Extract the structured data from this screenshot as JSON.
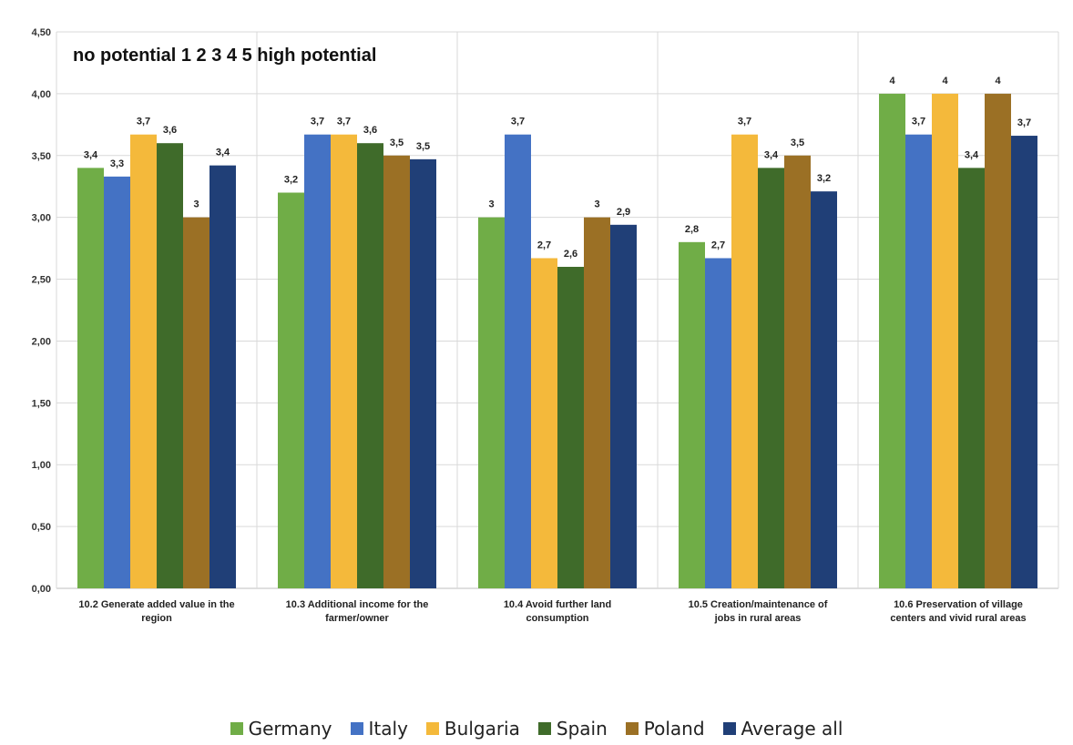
{
  "chart_data": {
    "type": "bar",
    "title": "no potential 1 2 3 4 5 high potential",
    "categories": [
      [
        "10.2 Generate added value in the",
        "region"
      ],
      [
        "10.3 Additional income for the",
        "farmer/owner"
      ],
      [
        "10.4 Avoid further land",
        "consumption"
      ],
      [
        "10.5 Creation/maintenance of",
        "jobs in rural areas"
      ],
      [
        "10.6 Preservation of village",
        "centers and vivid rural areas"
      ]
    ],
    "series": [
      {
        "name": "Germany",
        "color": "#70ad47",
        "values": [
          3.4,
          3.2,
          3.0,
          2.8,
          4.0
        ],
        "labels": [
          "3,4",
          "3,2",
          "3",
          "2,8",
          "4"
        ]
      },
      {
        "name": "Italy",
        "color": "#4472c4",
        "values": [
          3.33,
          3.67,
          3.67,
          2.67,
          3.67
        ],
        "labels": [
          "3,3",
          "3,7",
          "3,7",
          "2,7",
          "3,7"
        ]
      },
      {
        "name": "Bulgaria",
        "color": "#f4b93b",
        "values": [
          3.67,
          3.67,
          2.67,
          3.67,
          4.0
        ],
        "labels": [
          "3,7",
          "3,7",
          "2,7",
          "3,7",
          "4"
        ]
      },
      {
        "name": "Spain",
        "color": "#3f6b2a",
        "values": [
          3.6,
          3.6,
          2.6,
          3.4,
          3.4
        ],
        "labels": [
          "3,6",
          "3,6",
          "2,6",
          "3,4",
          "3,4"
        ]
      },
      {
        "name": "Poland",
        "color": "#9b7025",
        "values": [
          3.0,
          3.5,
          3.0,
          3.5,
          4.0
        ],
        "labels": [
          "3",
          "3,5",
          "3",
          "3,5",
          "4"
        ]
      },
      {
        "name": "Average all",
        "color": "#203f77",
        "values": [
          3.42,
          3.47,
          2.94,
          3.21,
          3.66
        ],
        "labels": [
          "3,4",
          "3,5",
          "2,9",
          "3,2",
          "3,7"
        ]
      }
    ],
    "ylim": [
      0,
      4.5
    ],
    "yticks": [
      "0,00",
      "0,50",
      "1,00",
      "1,50",
      "2,00",
      "2,50",
      "3,00",
      "3,50",
      "4,00",
      "4,50"
    ],
    "grid": true,
    "legend": "bottom"
  }
}
